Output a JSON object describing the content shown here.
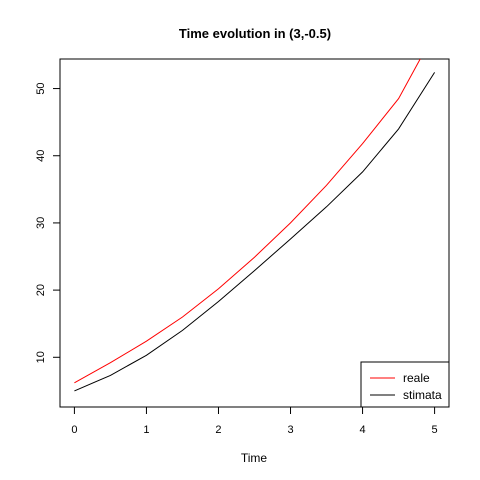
{
  "chart_data": {
    "type": "line",
    "title": "Time evolution in (3,-0.5)",
    "xlabel": "Time",
    "ylabel": "",
    "xlim": [
      -0.2,
      5.2
    ],
    "ylim": [
      2.6,
      54.4
    ],
    "x_ticks": [
      0,
      1,
      2,
      3,
      4,
      5
    ],
    "y_ticks": [
      10,
      20,
      30,
      40,
      50
    ],
    "grid": false,
    "legend_position": "bottom-right",
    "series": [
      {
        "name": "reale",
        "color": "#ff0000",
        "x": [
          0,
          0.5,
          1,
          1.5,
          2,
          2.5,
          3,
          3.5,
          4,
          4.5,
          4.8
        ],
        "y": [
          6.2,
          9.2,
          12.4,
          16.0,
          20.2,
          24.9,
          30.0,
          35.6,
          41.8,
          48.5,
          54.4
        ]
      },
      {
        "name": "stimata",
        "color": "#000000",
        "x": [
          0,
          0.5,
          1,
          1.5,
          2,
          2.5,
          3,
          3.5,
          4,
          4.5,
          5
        ],
        "y": [
          5.0,
          7.3,
          10.3,
          14.0,
          18.3,
          22.9,
          27.6,
          32.4,
          37.6,
          44.0,
          52.4
        ]
      }
    ]
  }
}
